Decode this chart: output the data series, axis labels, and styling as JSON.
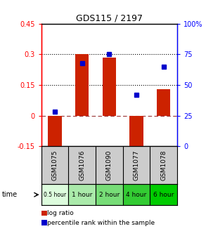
{
  "title": "GDS115 / 2197",
  "samples": [
    "GSM1075",
    "GSM1076",
    "GSM1090",
    "GSM1077",
    "GSM1078"
  ],
  "time_labels": [
    "0.5 hour",
    "1 hour",
    "2 hour",
    "4 hour",
    "6 hour"
  ],
  "time_colors": [
    "#ddfcdd",
    "#aaeaaa",
    "#77dd77",
    "#33cc33",
    "#00cc00"
  ],
  "log_ratios": [
    -0.17,
    0.3,
    0.285,
    -0.165,
    0.13
  ],
  "percentile_ranks": [
    28,
    68,
    75,
    42,
    65
  ],
  "bar_color": "#cc2200",
  "dot_color": "#0000cc",
  "ylim_left": [
    -0.15,
    0.45
  ],
  "ylim_right": [
    0,
    100
  ],
  "y_ticks_left": [
    -0.15,
    0,
    0.15,
    0.3,
    0.45
  ],
  "y_ticks_right": [
    0,
    25,
    50,
    75,
    100
  ],
  "hlines": [
    0.15,
    0.3
  ],
  "zero_line": 0,
  "background": "#ffffff",
  "legend_log_label": "log ratio",
  "legend_pct_label": "percentile rank within the sample",
  "plot_bg": "#ffffff",
  "sample_bg": "#cccccc"
}
